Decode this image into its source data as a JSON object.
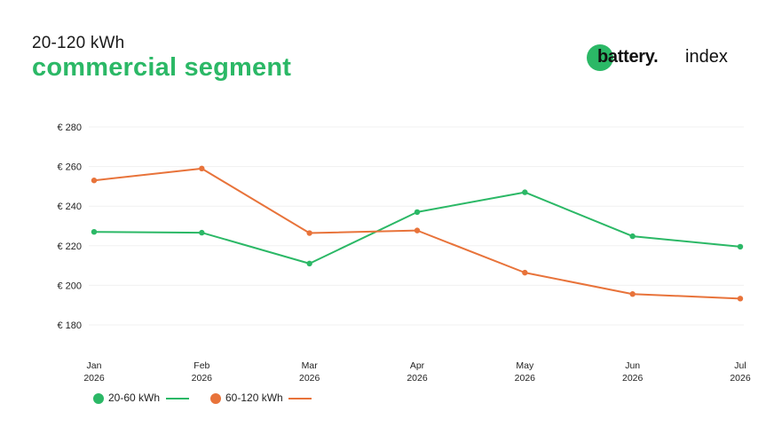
{
  "header": {
    "subtitle": "20-120 kWh",
    "title": "commercial segment"
  },
  "logo": {
    "word": "battery.",
    "suffix": "index",
    "dot_color": "#2bb866"
  },
  "chart_data": {
    "type": "line",
    "categories": [
      [
        "Jan",
        "2026"
      ],
      [
        "Feb",
        "2026"
      ],
      [
        "Mar",
        "2026"
      ],
      [
        "Apr",
        "2026"
      ],
      [
        "May",
        "2026"
      ],
      [
        "Jun",
        "2026"
      ],
      [
        "Jul",
        "2026"
      ]
    ],
    "y_ticks": [
      "€ 280",
      "€ 260",
      "€ 240",
      "€ 220",
      "€ 200",
      "€ 180"
    ],
    "y_tick_values": [
      280,
      260,
      240,
      220,
      200,
      180
    ],
    "ylim": [
      180,
      280
    ],
    "grid": true,
    "legend_position": "bottom-left",
    "series": [
      {
        "name": "20-60 kWh",
        "color": "#2bb866",
        "values": [
          227,
          226.6,
          211,
          237,
          247,
          224.8,
          219.5
        ]
      },
      {
        "name": "60-120 kWh",
        "color": "#e8733a",
        "values": [
          253,
          259,
          226.4,
          227.7,
          206.4,
          195.6,
          193.3
        ]
      }
    ]
  }
}
